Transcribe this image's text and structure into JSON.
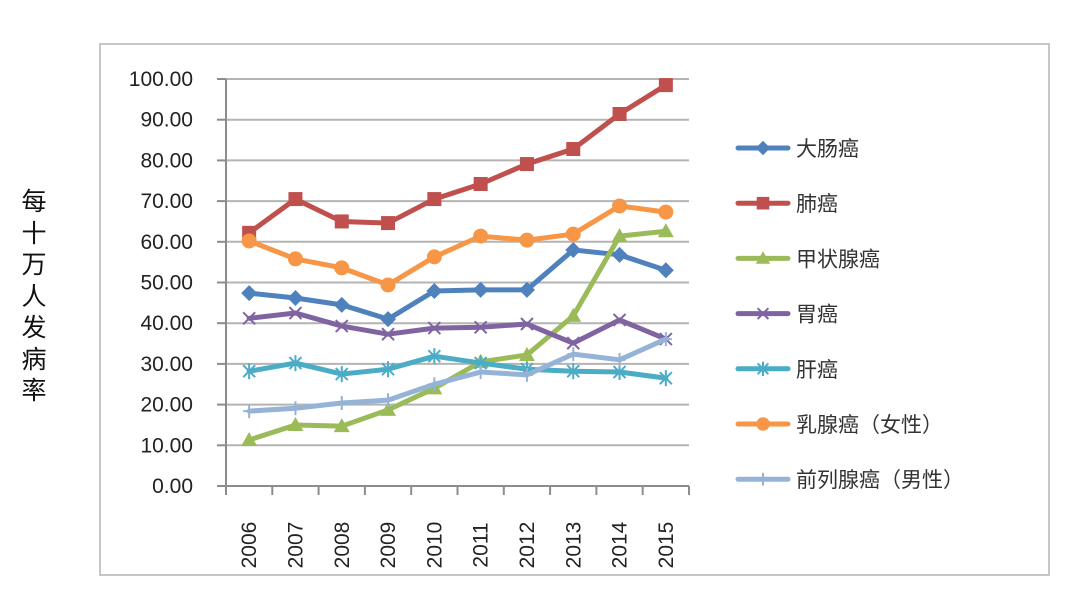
{
  "chart_data": {
    "type": "line",
    "title": "",
    "xlabel": "",
    "ylabel": "每十万人发病率",
    "ylim": [
      0,
      100
    ],
    "ytick_step": 10,
    "ytick_labels": [
      "0.00",
      "10.00",
      "20.00",
      "30.00",
      "40.00",
      "50.00",
      "60.00",
      "70.00",
      "80.00",
      "90.00",
      "100.00"
    ],
    "grid": true,
    "legend_position": "right",
    "categories": [
      "2006",
      "2007",
      "2008",
      "2009",
      "2010",
      "2011",
      "2012",
      "2013",
      "2014",
      "2015"
    ],
    "series": [
      {
        "name": "大肠癌",
        "color": "#4F81BD",
        "marker": "diamond",
        "values": [
          47.4,
          46.2,
          44.5,
          41.0,
          47.9,
          48.2,
          48.2,
          58.0,
          56.8,
          53.0
        ]
      },
      {
        "name": "肺癌",
        "color": "#C0504D",
        "marker": "square",
        "values": [
          62.2,
          70.5,
          65.0,
          64.6,
          70.5,
          74.2,
          79.1,
          82.8,
          91.4,
          98.5
        ]
      },
      {
        "name": "甲状腺癌",
        "color": "#9BBB59",
        "marker": "triangle",
        "values": [
          11.3,
          15.0,
          14.7,
          18.7,
          24.0,
          30.5,
          32.2,
          41.8,
          61.4,
          62.6
        ]
      },
      {
        "name": "胃癌",
        "color": "#8064A2",
        "marker": "x",
        "values": [
          41.2,
          42.5,
          39.3,
          37.3,
          38.8,
          39.0,
          39.8,
          35.1,
          40.8,
          36.1
        ]
      },
      {
        "name": "肝癌",
        "color": "#4BACC6",
        "marker": "star",
        "values": [
          28.2,
          30.2,
          27.5,
          28.7,
          31.9,
          30.2,
          28.7,
          28.2,
          28.0,
          26.5
        ]
      },
      {
        "name": "乳腺癌（女性）",
        "color": "#F79646",
        "marker": "circle",
        "values": [
          60.2,
          55.8,
          53.6,
          49.4,
          56.3,
          61.4,
          60.4,
          61.9,
          68.8,
          67.3
        ]
      },
      {
        "name": "前列腺癌（男性）",
        "color": "#95B3D7",
        "marker": "plus",
        "values": [
          18.4,
          19.1,
          20.4,
          21.1,
          25.0,
          28.0,
          27.3,
          32.4,
          31.0,
          36.1
        ]
      }
    ]
  }
}
